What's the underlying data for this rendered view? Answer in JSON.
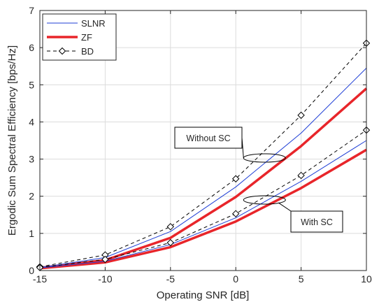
{
  "chart_data": {
    "type": "line",
    "xlabel": "Operating SNR [dB]",
    "ylabel": "Ergodic Sum Spectral Efficiency [bps/Hz]",
    "xlim": [
      -15,
      10
    ],
    "ylim": [
      0,
      7
    ],
    "xticks": [
      -15,
      -10,
      -5,
      0,
      5,
      10
    ],
    "yticks": [
      0,
      1,
      2,
      3,
      4,
      5,
      6,
      7
    ],
    "grid": true,
    "legend_position": "top-left",
    "legend": [
      {
        "label": "SLNR",
        "color": "#1f3fd6",
        "style": "solid-thin"
      },
      {
        "label": "ZF",
        "color": "#e8252a",
        "style": "solid-thick"
      },
      {
        "label": "BD",
        "color": "#000000",
        "style": "dashed-diamond"
      }
    ],
    "x": [
      -15,
      -10,
      -5,
      0,
      5,
      10
    ],
    "series": [
      {
        "name": "SLNR",
        "group": "Without SC",
        "values": [
          0.08,
          0.35,
          1.05,
          2.25,
          3.7,
          5.45
        ]
      },
      {
        "name": "ZF",
        "group": "Without SC",
        "values": [
          0.07,
          0.28,
          0.88,
          1.98,
          3.35,
          4.9
        ]
      },
      {
        "name": "BD",
        "group": "Without SC",
        "values": [
          0.1,
          0.42,
          1.18,
          2.47,
          4.18,
          6.12
        ]
      },
      {
        "name": "SLNR",
        "group": "With SC",
        "values": [
          0.07,
          0.25,
          0.7,
          1.42,
          2.4,
          3.5
        ]
      },
      {
        "name": "ZF",
        "group": "With SC",
        "values": [
          0.06,
          0.22,
          0.63,
          1.32,
          2.22,
          3.25
        ]
      },
      {
        "name": "BD",
        "group": "With SC",
        "values": [
          0.08,
          0.3,
          0.75,
          1.53,
          2.56,
          3.78
        ]
      }
    ],
    "annotations": [
      {
        "text": "Without SC",
        "ellipse_at": [
          2.2,
          3.03
        ]
      },
      {
        "text": "With SC",
        "ellipse_at": [
          2.2,
          1.9
        ]
      }
    ]
  }
}
